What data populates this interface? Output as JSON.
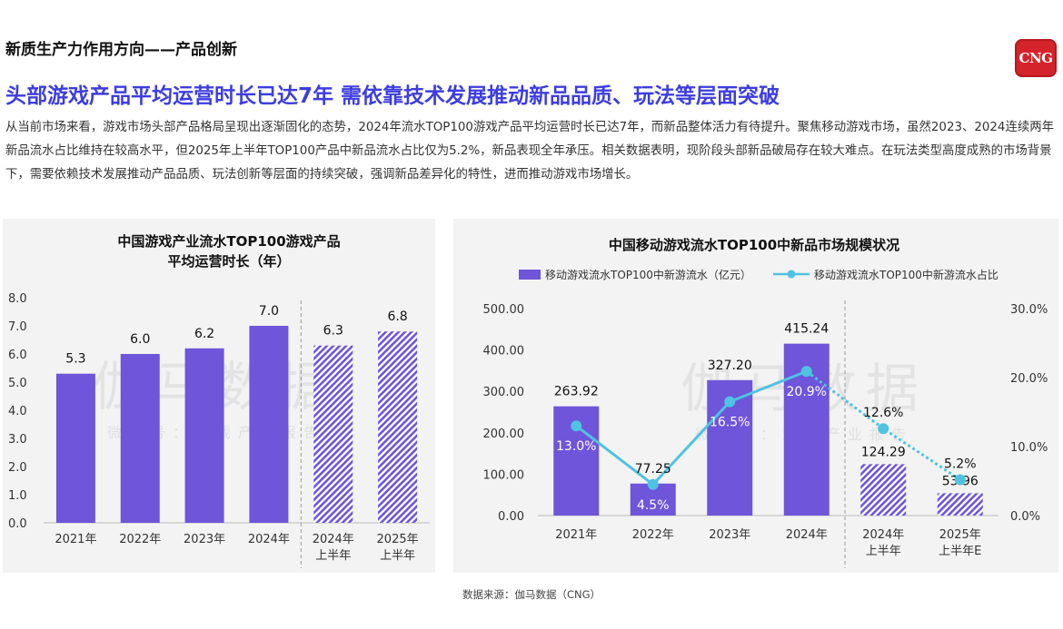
{
  "page": {
    "section_title": "新质生产力作用方向——产品创新",
    "headline": "头部游戏产品平均运营时长已达7年  需依靠技术发展推动新品品质、玩法等层面突破",
    "paragraph": "从当前市场来看，游戏市场头部产品格局呈现出逐渐固化的态势，2024年流水TOP100游戏产品平均运营时长已达7年，而新品整体活力有待提升。聚焦移动游戏市场，虽然2023、2024连续两年新品流水占比维持在较高水平，但2025年上半年TOP100产品中新品流水占比仅为5.2%，新品表现全年承压。相关数据表明，现阶段头部新品破局存在较大难点。在玩法类型高度成熟的市场背景下，需要依赖技术发展推动产品品质、玩法创新等层面的持续突破，强调新品差异化的特性，进而推动游戏市场增长。",
    "logo_text": "CNG",
    "watermark_main": "伽马数据",
    "watermark_sub": "微信号：游戏产业报告",
    "source": "数据来源：伽马数据（CNG）"
  },
  "colors": {
    "bar": "#6e55d9",
    "line": "#4fc3e0",
    "headline": "#3d3de0",
    "logo": "#d4232a"
  },
  "chart_data": [
    {
      "type": "bar",
      "title": [
        "中国游戏产业流水TOP100游戏产品",
        "平均运营时长（年）"
      ],
      "categories": [
        [
          "2021年"
        ],
        [
          "2022年"
        ],
        [
          "2023年"
        ],
        [
          "2024年"
        ],
        [
          "2024年",
          "上半年"
        ],
        [
          "2025年",
          "上半年"
        ]
      ],
      "values": [
        5.3,
        6.0,
        6.2,
        7.0,
        6.3,
        6.8
      ],
      "value_labels": [
        "5.3",
        "6.0",
        "6.2",
        "7.0",
        "6.3",
        "6.8"
      ],
      "hatched": [
        false,
        false,
        false,
        false,
        true,
        true
      ],
      "ylim": [
        0,
        8
      ],
      "yticks": [
        "0.0",
        "1.0",
        "2.0",
        "3.0",
        "4.0",
        "5.0",
        "6.0",
        "7.0",
        "8.0"
      ],
      "divider_after_index": 3,
      "grid": false
    },
    {
      "type": "bar+line",
      "title": "中国移动游戏流水TOP100中新品市场规模状况",
      "categories": [
        [
          "2021年"
        ],
        [
          "2022年"
        ],
        [
          "2023年"
        ],
        [
          "2024年"
        ],
        [
          "2024年",
          "上半年"
        ],
        [
          "2025年",
          "上半年E"
        ]
      ],
      "series": [
        {
          "name": "移动游戏流水TOP100中新游流水（亿元）",
          "kind": "bar",
          "axis": "left",
          "values": [
            263.92,
            77.25,
            327.2,
            415.24,
            124.29,
            53.96
          ],
          "value_labels": [
            "263.92",
            "77.25",
            "327.20",
            "415.24",
            "124.29",
            "53.96"
          ],
          "hatched": [
            false,
            false,
            false,
            false,
            true,
            true
          ]
        },
        {
          "name": "移动游戏流水TOP100中新游流水占比",
          "kind": "line",
          "axis": "right",
          "values": [
            13.0,
            4.5,
            16.5,
            20.9,
            12.6,
            5.2
          ],
          "value_labels": [
            "13.0%",
            "4.5%",
            "16.5%",
            "20.9%",
            "12.6%",
            "5.2%"
          ],
          "dashed_from_index": 3
        }
      ],
      "ylim_left": [
        0,
        500
      ],
      "yticks_left": [
        "0.00",
        "100.00",
        "200.00",
        "300.00",
        "400.00",
        "500.00"
      ],
      "ylim_right": [
        0,
        30
      ],
      "yticks_right": [
        "0.0%",
        "10.0%",
        "20.0%",
        "30.0%"
      ],
      "legend_position": "top",
      "divider_after_index": 3,
      "grid": false
    }
  ]
}
